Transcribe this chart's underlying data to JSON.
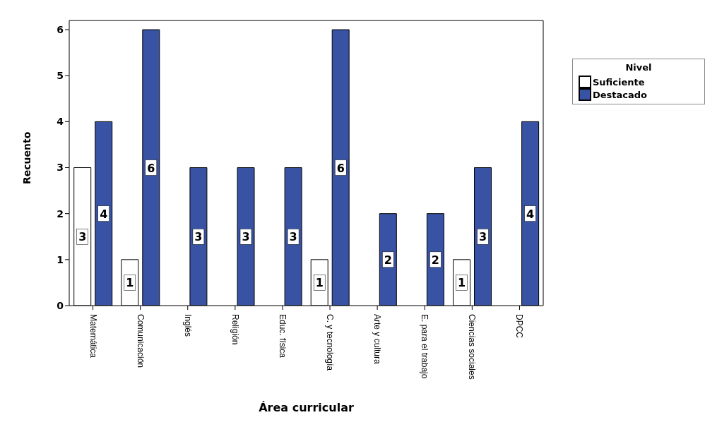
{
  "chart_data": {
    "type": "bar",
    "xlabel": "Área curricular",
    "ylabel": "Recuento",
    "legend_title": "Nivel",
    "categories": [
      "Matemática",
      "Comunicación",
      "Inglés",
      "Religión",
      "Educ. física",
      "C. y tecnología",
      "Arte y cultura",
      "E. para el trabajo",
      "Ciencias sociales",
      "DPCC"
    ],
    "series": [
      {
        "name": "Suficiente",
        "color": "#ffffff",
        "values": [
          3,
          1,
          null,
          null,
          null,
          1,
          null,
          null,
          1,
          null
        ]
      },
      {
        "name": "Destacado",
        "color": "#3953a4",
        "values": [
          4,
          6,
          3,
          3,
          3,
          6,
          2,
          2,
          3,
          4
        ]
      }
    ],
    "ylim": [
      0,
      6.2
    ],
    "yticks": [
      0,
      1,
      2,
      3,
      4,
      5,
      6
    ],
    "grid": false,
    "legend": "right",
    "data_labels": true
  }
}
